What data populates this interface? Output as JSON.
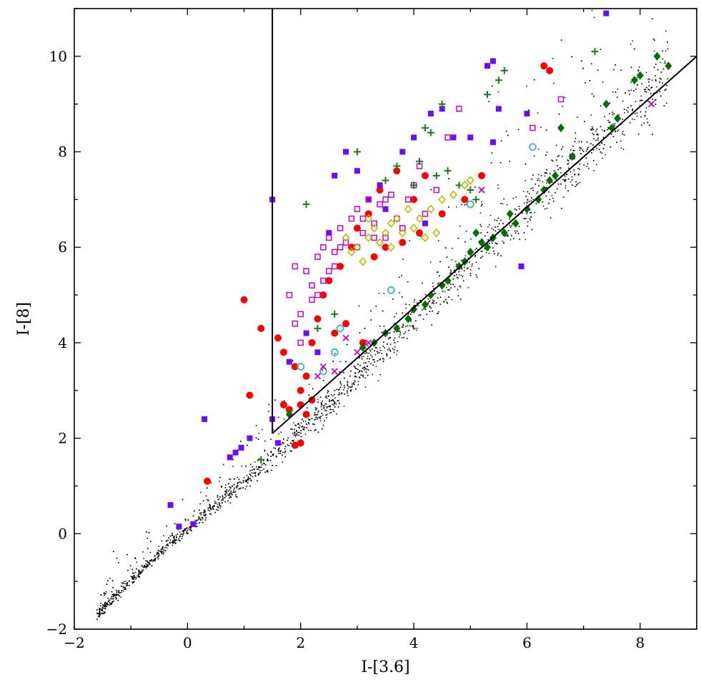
{
  "chart_data": {
    "type": "scatter",
    "title": "",
    "xlabel": "I-[3.6]",
    "ylabel": "I-[8]",
    "xlim": [
      -2,
      9
    ],
    "ylim": [
      -2,
      11
    ],
    "x_ticks": [
      -2,
      0,
      2,
      4,
      6,
      8
    ],
    "y_ticks": [
      -2,
      0,
      2,
      4,
      6,
      8,
      10
    ],
    "x_tick_labels": [
      "−2",
      "0",
      "2",
      "4",
      "6",
      "8"
    ],
    "y_tick_labels": [
      "−2",
      "0",
      "2",
      "4",
      "6",
      "8",
      "10"
    ],
    "grid": false,
    "legend": "none",
    "boundary_lines": [
      {
        "x": [
          1.5,
          1.5
        ],
        "y": [
          11,
          2.1
        ]
      },
      {
        "x": [
          1.5,
          9
        ],
        "y": [
          2.1,
          10.0
        ]
      }
    ],
    "series": [
      {
        "marker": "filled-circle",
        "color": "#ff0000",
        "points": [
          [
            0.35,
            1.1
          ],
          [
            1.0,
            4.9
          ],
          [
            1.1,
            2.9
          ],
          [
            1.3,
            4.3
          ],
          [
            1.6,
            4.1
          ],
          [
            1.7,
            3.8
          ],
          [
            1.8,
            2.6
          ],
          [
            1.9,
            3.5
          ],
          [
            2.0,
            3.0
          ],
          [
            2.1,
            3.3
          ],
          [
            2.2,
            4.0
          ],
          [
            2.3,
            4.5
          ],
          [
            2.4,
            5.0
          ],
          [
            2.5,
            5.3
          ],
          [
            2.6,
            4.2
          ],
          [
            2.7,
            5.6
          ],
          [
            2.8,
            4.4
          ],
          [
            2.9,
            6.0
          ],
          [
            3.0,
            6.4
          ],
          [
            3.1,
            4.0
          ],
          [
            3.2,
            6.7
          ],
          [
            3.3,
            5.8
          ],
          [
            3.4,
            7.2
          ],
          [
            3.5,
            6.0
          ],
          [
            3.7,
            7.6
          ],
          [
            3.8,
            6.1
          ],
          [
            4.0,
            7.0
          ],
          [
            4.1,
            6.3
          ],
          [
            4.2,
            7.5
          ],
          [
            4.5,
            6.7
          ],
          [
            4.9,
            7.0
          ],
          [
            5.2,
            7.5
          ],
          [
            6.3,
            9.8
          ],
          [
            6.4,
            9.7
          ],
          [
            2.0,
            2.7
          ],
          [
            2.2,
            2.8
          ],
          [
            1.7,
            2.7
          ],
          [
            2.0,
            1.9
          ],
          [
            2.1,
            2.5
          ],
          [
            1.9,
            1.85
          ]
        ]
      },
      {
        "marker": "filled-square",
        "color": "#6a0dff",
        "points": [
          [
            -0.3,
            0.6
          ],
          [
            -0.15,
            0.15
          ],
          [
            0.1,
            0.2
          ],
          [
            0.3,
            2.4
          ],
          [
            0.75,
            1.6
          ],
          [
            0.85,
            1.7
          ],
          [
            0.95,
            1.8
          ],
          [
            1.1,
            2.0
          ],
          [
            1.5,
            2.4
          ],
          [
            1.5,
            7.0
          ],
          [
            1.6,
            1.9
          ],
          [
            1.8,
            3.6
          ],
          [
            2.1,
            4.2
          ],
          [
            2.3,
            3.8
          ],
          [
            2.5,
            6.3
          ],
          [
            2.6,
            7.5
          ],
          [
            2.8,
            8.0
          ],
          [
            3.0,
            7.6
          ],
          [
            3.2,
            7.0
          ],
          [
            3.4,
            7.3
          ],
          [
            3.5,
            6.8
          ],
          [
            3.8,
            8.0
          ],
          [
            4.0,
            8.3
          ],
          [
            4.3,
            8.8
          ],
          [
            4.5,
            8.9
          ],
          [
            4.7,
            8.3
          ],
          [
            5.0,
            8.3
          ],
          [
            5.3,
            9.8
          ],
          [
            5.4,
            9.9
          ],
          [
            5.5,
            8.9
          ],
          [
            5.4,
            8.2
          ],
          [
            5.9,
            5.6
          ],
          [
            6.0,
            8.8
          ],
          [
            6.8,
            7.9
          ],
          [
            7.4,
            10.9
          ],
          [
            4.2,
            6.5
          ]
        ]
      },
      {
        "marker": "open-square",
        "color": "#cc00cc",
        "points": [
          [
            1.8,
            5.0
          ],
          [
            1.9,
            5.6
          ],
          [
            2.0,
            4.6
          ],
          [
            2.1,
            5.5
          ],
          [
            2.2,
            5.2
          ],
          [
            2.3,
            5.8
          ],
          [
            2.4,
            6.0
          ],
          [
            2.5,
            6.2
          ],
          [
            2.6,
            5.6
          ],
          [
            2.7,
            6.4
          ],
          [
            2.8,
            6.1
          ],
          [
            2.9,
            6.6
          ],
          [
            3.0,
            6.8
          ],
          [
            3.1,
            6.3
          ],
          [
            3.2,
            7.0
          ],
          [
            3.3,
            6.5
          ],
          [
            3.4,
            6.9
          ],
          [
            3.5,
            6.2
          ],
          [
            3.6,
            7.1
          ],
          [
            3.7,
            6.6
          ],
          [
            3.8,
            6.4
          ],
          [
            3.9,
            7.0
          ],
          [
            4.0,
            7.3
          ],
          [
            4.1,
            7.7
          ],
          [
            4.2,
            6.7
          ],
          [
            4.4,
            7.2
          ],
          [
            4.6,
            8.3
          ],
          [
            4.8,
            8.9
          ],
          [
            6.1,
            8.5
          ],
          [
            6.6,
            9.1
          ],
          [
            2.3,
            5.0
          ],
          [
            2.6,
            5.9
          ],
          [
            3.0,
            6.0
          ],
          [
            3.3,
            6.2
          ],
          [
            2.4,
            5.3
          ],
          [
            2.0,
            4.0
          ],
          [
            1.9,
            4.4
          ],
          [
            2.2,
            4.9
          ],
          [
            2.5,
            5.5
          ],
          [
            2.7,
            6.0
          ],
          [
            3.1,
            6.6
          ],
          [
            3.5,
            7.0
          ]
        ]
      },
      {
        "marker": "plus",
        "color": "#1a7a1a",
        "points": [
          [
            1.3,
            1.55
          ],
          [
            2.1,
            6.9
          ],
          [
            2.3,
            4.3
          ],
          [
            2.6,
            4.6
          ],
          [
            3.0,
            8.0
          ],
          [
            3.5,
            7.4
          ],
          [
            3.7,
            7.7
          ],
          [
            4.0,
            7.3
          ],
          [
            4.1,
            7.8
          ],
          [
            4.2,
            8.5
          ],
          [
            4.3,
            8.4
          ],
          [
            4.5,
            9.0
          ],
          [
            4.6,
            7.6
          ],
          [
            5.0,
            7.2
          ],
          [
            5.1,
            7.0
          ],
          [
            5.3,
            9.2
          ],
          [
            5.5,
            9.5
          ],
          [
            5.6,
            9.7
          ],
          [
            7.2,
            10.1
          ],
          [
            4.8,
            7.3
          ],
          [
            4.4,
            7.5
          ]
        ]
      },
      {
        "marker": "filled-diamond",
        "color": "#007000",
        "points": [
          [
            1.8,
            2.5
          ],
          [
            3.1,
            3.9
          ],
          [
            3.3,
            4.0
          ],
          [
            3.5,
            4.2
          ],
          [
            3.7,
            4.3
          ],
          [
            3.9,
            4.5
          ],
          [
            4.0,
            4.7
          ],
          [
            4.2,
            4.8
          ],
          [
            4.3,
            5.0
          ],
          [
            4.5,
            5.2
          ],
          [
            4.6,
            5.3
          ],
          [
            4.8,
            5.6
          ],
          [
            5.0,
            5.9
          ],
          [
            5.2,
            6.1
          ],
          [
            5.4,
            6.2
          ],
          [
            5.6,
            6.3
          ],
          [
            5.8,
            6.5
          ],
          [
            6.0,
            6.8
          ],
          [
            6.2,
            7.0
          ],
          [
            6.3,
            7.2
          ],
          [
            6.5,
            7.5
          ],
          [
            6.6,
            8.5
          ],
          [
            6.8,
            7.9
          ],
          [
            7.4,
            9.0
          ],
          [
            7.5,
            8.5
          ],
          [
            7.6,
            8.7
          ],
          [
            7.9,
            9.5
          ],
          [
            8.0,
            9.6
          ],
          [
            8.3,
            10.0
          ],
          [
            8.5,
            9.8
          ],
          [
            5.1,
            6.3
          ],
          [
            5.3,
            6.0
          ],
          [
            4.9,
            5.7
          ],
          [
            5.7,
            6.7
          ],
          [
            6.4,
            7.4
          ]
        ]
      },
      {
        "marker": "open-circle",
        "color": "#33bbbb",
        "points": [
          [
            2.0,
            3.5
          ],
          [
            2.4,
            3.4
          ],
          [
            2.6,
            3.8
          ],
          [
            2.7,
            4.3
          ],
          [
            3.6,
            5.1
          ],
          [
            5.0,
            6.9
          ],
          [
            6.1,
            8.1
          ]
        ]
      },
      {
        "marker": "open-diamond",
        "color": "#bbbb00",
        "points": [
          [
            2.9,
            5.9
          ],
          [
            3.0,
            6.0
          ],
          [
            3.2,
            6.2
          ],
          [
            3.3,
            6.4
          ],
          [
            3.4,
            6.1
          ],
          [
            3.5,
            6.3
          ],
          [
            3.6,
            6.5
          ],
          [
            3.7,
            6.6
          ],
          [
            3.8,
            6.3
          ],
          [
            3.9,
            6.8
          ],
          [
            4.0,
            6.4
          ],
          [
            4.1,
            6.6
          ],
          [
            4.2,
            6.2
          ],
          [
            4.3,
            6.8
          ],
          [
            4.5,
            7.0
          ],
          [
            4.7,
            7.1
          ],
          [
            4.9,
            7.3
          ],
          [
            5.0,
            7.4
          ],
          [
            3.2,
            6.6
          ],
          [
            3.6,
            6.0
          ],
          [
            4.4,
            6.3
          ],
          [
            2.8,
            6.2
          ],
          [
            3.1,
            5.7
          ]
        ]
      },
      {
        "marker": "x",
        "color": "#cc00cc",
        "points": [
          [
            2.3,
            3.3
          ],
          [
            2.4,
            3.5
          ],
          [
            2.6,
            3.4
          ],
          [
            2.8,
            4.1
          ],
          [
            3.0,
            3.8
          ],
          [
            3.2,
            4.0
          ],
          [
            5.2,
            7.2
          ],
          [
            8.2,
            9.0
          ]
        ]
      }
    ],
    "background_cloud": {
      "marker": "dot",
      "color": "#000000",
      "description_ref": "dense black point cloud along the diagonal",
      "segments": [
        [
          -1.6,
          -1.7
        ],
        [
          -0.5,
          -0.4
        ],
        [
          0.5,
          0.6
        ],
        [
          1.5,
          1.6
        ],
        [
          2.5,
          2.7
        ],
        [
          3.5,
          3.9
        ],
        [
          4.5,
          5.1
        ],
        [
          5.5,
          6.3
        ],
        [
          6.5,
          7.4
        ],
        [
          7.5,
          8.5
        ],
        [
          8.5,
          9.6
        ]
      ]
    }
  }
}
